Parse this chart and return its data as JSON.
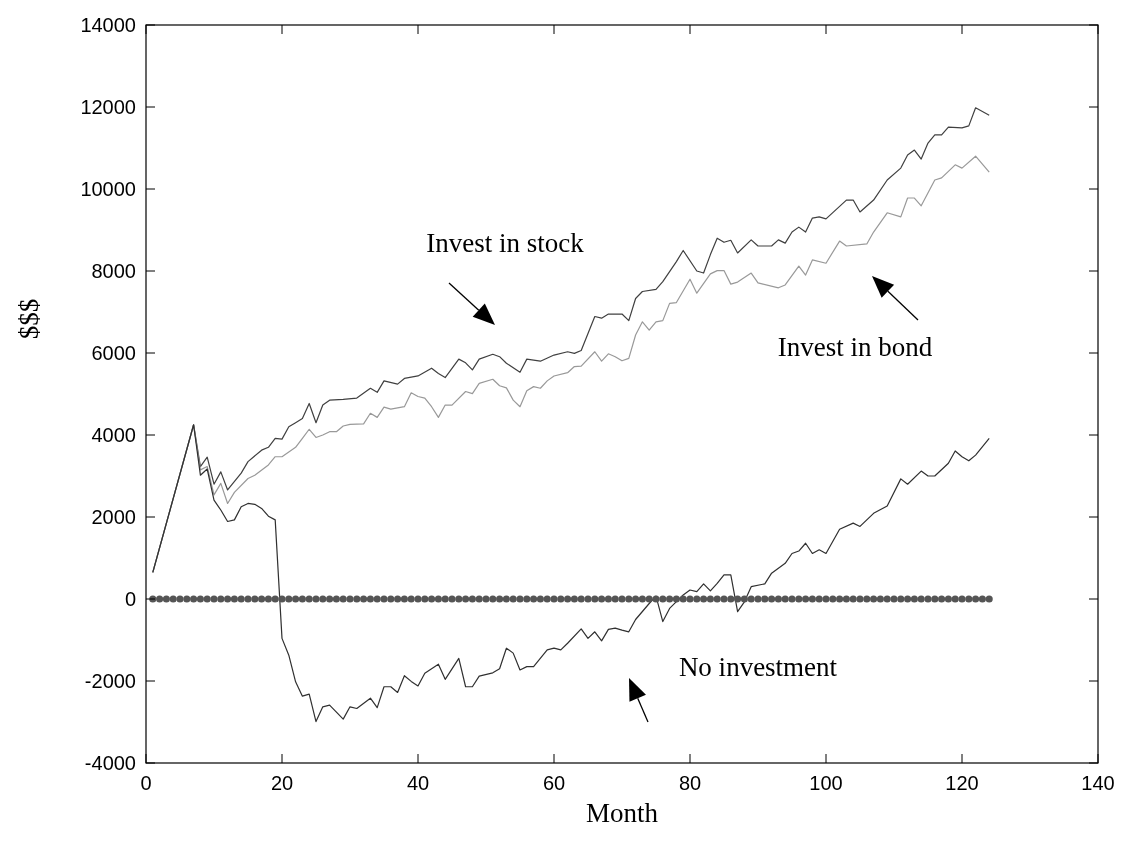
{
  "chart_data": {
    "type": "line",
    "xlabel": "Month",
    "ylabel": "$$$",
    "xlim": [
      0,
      140
    ],
    "xticks": [
      0,
      20,
      40,
      60,
      80,
      100,
      120,
      140
    ],
    "ylim": [
      -4000,
      14000
    ],
    "yticks": [
      -4000,
      -2000,
      0,
      2000,
      4000,
      6000,
      8000,
      10000,
      12000,
      14000
    ],
    "grid": false,
    "marker": "none",
    "line_style": "solid",
    "annotations": [
      "Invest in stock",
      "Invest in bond",
      "No investment"
    ],
    "series": [
      {
        "color": "#404040",
        "x": [
          1,
          7,
          8,
          9,
          10,
          11,
          12,
          14,
          15,
          17,
          18,
          19,
          20,
          21,
          22,
          23,
          24,
          25,
          26,
          27,
          29,
          31,
          33,
          34,
          35,
          37,
          38,
          40,
          42,
          43,
          44,
          46,
          47,
          48,
          49,
          51,
          52,
          53,
          55,
          56,
          58,
          60,
          62,
          63,
          64,
          66,
          67,
          68,
          70,
          71,
          72,
          73,
          75,
          76,
          78,
          79,
          81,
          82,
          83,
          84,
          85,
          86,
          87,
          89,
          90,
          92,
          93,
          94,
          95,
          96,
          97,
          98,
          99,
          100,
          103,
          104,
          105,
          107,
          109,
          111,
          112,
          113,
          114,
          115,
          116,
          117,
          118,
          120,
          121,
          122,
          124
        ],
        "values": [
          650,
          4250,
          3230,
          3460,
          2800,
          3100,
          2660,
          3070,
          3350,
          3630,
          3700,
          3920,
          3900,
          4200,
          4300,
          4400,
          4770,
          4300,
          4730,
          4850,
          4870,
          4900,
          5140,
          5040,
          5320,
          5240,
          5380,
          5440,
          5630,
          5500,
          5400,
          5850,
          5760,
          5590,
          5850,
          5970,
          5910,
          5750,
          5530,
          5850,
          5800,
          5950,
          6030,
          5990,
          6060,
          6890,
          6850,
          6950,
          6950,
          6790,
          7330,
          7500,
          7550,
          7740,
          8230,
          8500,
          8000,
          7950,
          8400,
          8800,
          8700,
          8750,
          8440,
          8760,
          8610,
          8610,
          8760,
          8680,
          8950,
          9070,
          8950,
          9290,
          9320,
          9270,
          9730,
          9730,
          9440,
          9730,
          10220,
          10510,
          10830,
          10950,
          10730,
          11120,
          11320,
          11320,
          11510,
          11490,
          11540,
          11980,
          11800
        ]
      },
      {
        "color": "#999999",
        "x": [
          1,
          7,
          8,
          9,
          10,
          11,
          12,
          13,
          15,
          16,
          18,
          19,
          20,
          22,
          23,
          24,
          25,
          26,
          27,
          28,
          29,
          30,
          32,
          33,
          34,
          35,
          36,
          38,
          39,
          40,
          41,
          42,
          43,
          44,
          45,
          47,
          48,
          49,
          51,
          52,
          53,
          54,
          55,
          56,
          57,
          58,
          59,
          60,
          62,
          63,
          64,
          66,
          67,
          68,
          69,
          70,
          71,
          72,
          73,
          74,
          75,
          76,
          77,
          78,
          80,
          81,
          83,
          84,
          85,
          86,
          87,
          89,
          90,
          93,
          94,
          96,
          97,
          98,
          100,
          102,
          103,
          106,
          107,
          109,
          111,
          112,
          113,
          114,
          116,
          117,
          119,
          120,
          122,
          124
        ],
        "values": [
          650,
          4250,
          3150,
          3230,
          2540,
          2820,
          2330,
          2600,
          2940,
          3020,
          3270,
          3470,
          3470,
          3700,
          3920,
          4140,
          3940,
          4000,
          4080,
          4080,
          4220,
          4260,
          4270,
          4530,
          4430,
          4680,
          4630,
          4690,
          5030,
          4940,
          4900,
          4690,
          4430,
          4730,
          4730,
          5060,
          5010,
          5260,
          5360,
          5200,
          5150,
          4850,
          4690,
          5080,
          5180,
          5140,
          5320,
          5440,
          5520,
          5670,
          5680,
          6030,
          5800,
          5980,
          5910,
          5810,
          5870,
          6440,
          6760,
          6560,
          6760,
          6790,
          7210,
          7230,
          7800,
          7460,
          7930,
          8010,
          8010,
          7680,
          7730,
          7950,
          7710,
          7590,
          7660,
          8120,
          7900,
          8270,
          8190,
          8730,
          8610,
          8660,
          8950,
          9420,
          9320,
          9780,
          9780,
          9590,
          10220,
          10270,
          10590,
          10510,
          10800,
          10410
        ]
      },
      {
        "color": "#303030",
        "x": [
          1,
          7,
          8,
          9,
          10,
          11,
          12,
          13,
          14,
          15,
          16,
          17,
          18,
          19,
          20,
          21,
          22,
          23,
          24,
          25,
          26,
          27,
          29,
          30,
          31,
          33,
          34,
          35,
          36,
          37,
          38,
          39,
          40,
          41,
          43,
          44,
          46,
          47,
          48,
          49,
          51,
          52,
          53,
          54,
          55,
          56,
          57,
          59,
          60,
          61,
          62,
          64,
          65,
          66,
          67,
          68,
          69,
          70,
          71,
          72,
          74,
          75,
          76,
          77,
          79,
          80,
          81,
          82,
          83,
          84,
          85,
          86,
          87,
          88,
          89,
          91,
          92,
          94,
          95,
          96,
          97,
          98,
          99,
          100,
          102,
          104,
          105,
          107,
          109,
          111,
          112,
          114,
          115,
          116,
          118,
          119,
          120,
          121,
          122,
          124
        ],
        "values": [
          650,
          4250,
          3020,
          3170,
          2410,
          2170,
          1890,
          1930,
          2250,
          2330,
          2310,
          2210,
          2020,
          1930,
          -960,
          -1370,
          -2020,
          -2370,
          -2320,
          -2990,
          -2630,
          -2590,
          -2930,
          -2630,
          -2670,
          -2420,
          -2650,
          -2140,
          -2140,
          -2280,
          -1870,
          -2010,
          -2120,
          -1810,
          -1590,
          -1960,
          -1450,
          -2140,
          -2140,
          -1880,
          -1800,
          -1700,
          -1200,
          -1320,
          -1730,
          -1650,
          -1650,
          -1240,
          -1200,
          -1240,
          -1080,
          -730,
          -960,
          -800,
          -1020,
          -740,
          -710,
          -760,
          -800,
          -500,
          -110,
          70,
          -550,
          -230,
          100,
          220,
          180,
          370,
          200,
          380,
          590,
          590,
          -310,
          -70,
          300,
          370,
          630,
          870,
          1110,
          1170,
          1360,
          1110,
          1200,
          1110,
          1700,
          1850,
          1770,
          2090,
          2270,
          2930,
          2800,
          3120,
          3000,
          3000,
          3310,
          3610,
          3470,
          3370,
          3510,
          3920
        ]
      },
      {
        "type": "scatter",
        "marker": "circle",
        "color": "#555555",
        "x": [
          1,
          2,
          3,
          4,
          5,
          6,
          7,
          8,
          9,
          10,
          11,
          12,
          13,
          14,
          15,
          16,
          17,
          18,
          19,
          20,
          21,
          22,
          23,
          24,
          25,
          26,
          27,
          28,
          29,
          30,
          31,
          32,
          33,
          34,
          35,
          36,
          37,
          38,
          39,
          40,
          41,
          42,
          43,
          44,
          45,
          46,
          47,
          48,
          49,
          50,
          51,
          52,
          53,
          54,
          55,
          56,
          57,
          58,
          59,
          60,
          61,
          62,
          63,
          64,
          65,
          66,
          67,
          68,
          69,
          70,
          71,
          72,
          73,
          74,
          75,
          76,
          77,
          78,
          79,
          80,
          81,
          82,
          83,
          84,
          85,
          86,
          87,
          88,
          89,
          90,
          91,
          92,
          93,
          94,
          95,
          96,
          97,
          98,
          99,
          100,
          101,
          102,
          103,
          104,
          105,
          106,
          107,
          108,
          109,
          110,
          111,
          112,
          113,
          114,
          115,
          116,
          117,
          118,
          119,
          120,
          121,
          122,
          123,
          124
        ],
        "values": [
          0,
          0,
          0,
          0,
          0,
          0,
          0,
          0,
          0,
          0,
          0,
          0,
          0,
          0,
          0,
          0,
          0,
          0,
          0,
          0,
          0,
          0,
          0,
          0,
          0,
          0,
          0,
          0,
          0,
          0,
          0,
          0,
          0,
          0,
          0,
          0,
          0,
          0,
          0,
          0,
          0,
          0,
          0,
          0,
          0,
          0,
          0,
          0,
          0,
          0,
          0,
          0,
          0,
          0,
          0,
          0,
          0,
          0,
          0,
          0,
          0,
          0,
          0,
          0,
          0,
          0,
          0,
          0,
          0,
          0,
          0,
          0,
          0,
          0,
          0,
          0,
          0,
          0,
          0,
          0,
          0,
          0,
          0,
          0,
          0,
          0,
          0,
          0,
          0,
          0,
          0,
          0,
          0,
          0,
          0,
          0,
          0,
          0,
          0,
          0,
          0,
          0,
          0,
          0,
          0,
          0,
          0,
          0,
          0,
          0,
          0,
          0,
          0,
          0,
          0,
          0,
          0,
          0,
          0,
          0,
          0,
          0,
          0,
          0
        ]
      }
    ]
  }
}
